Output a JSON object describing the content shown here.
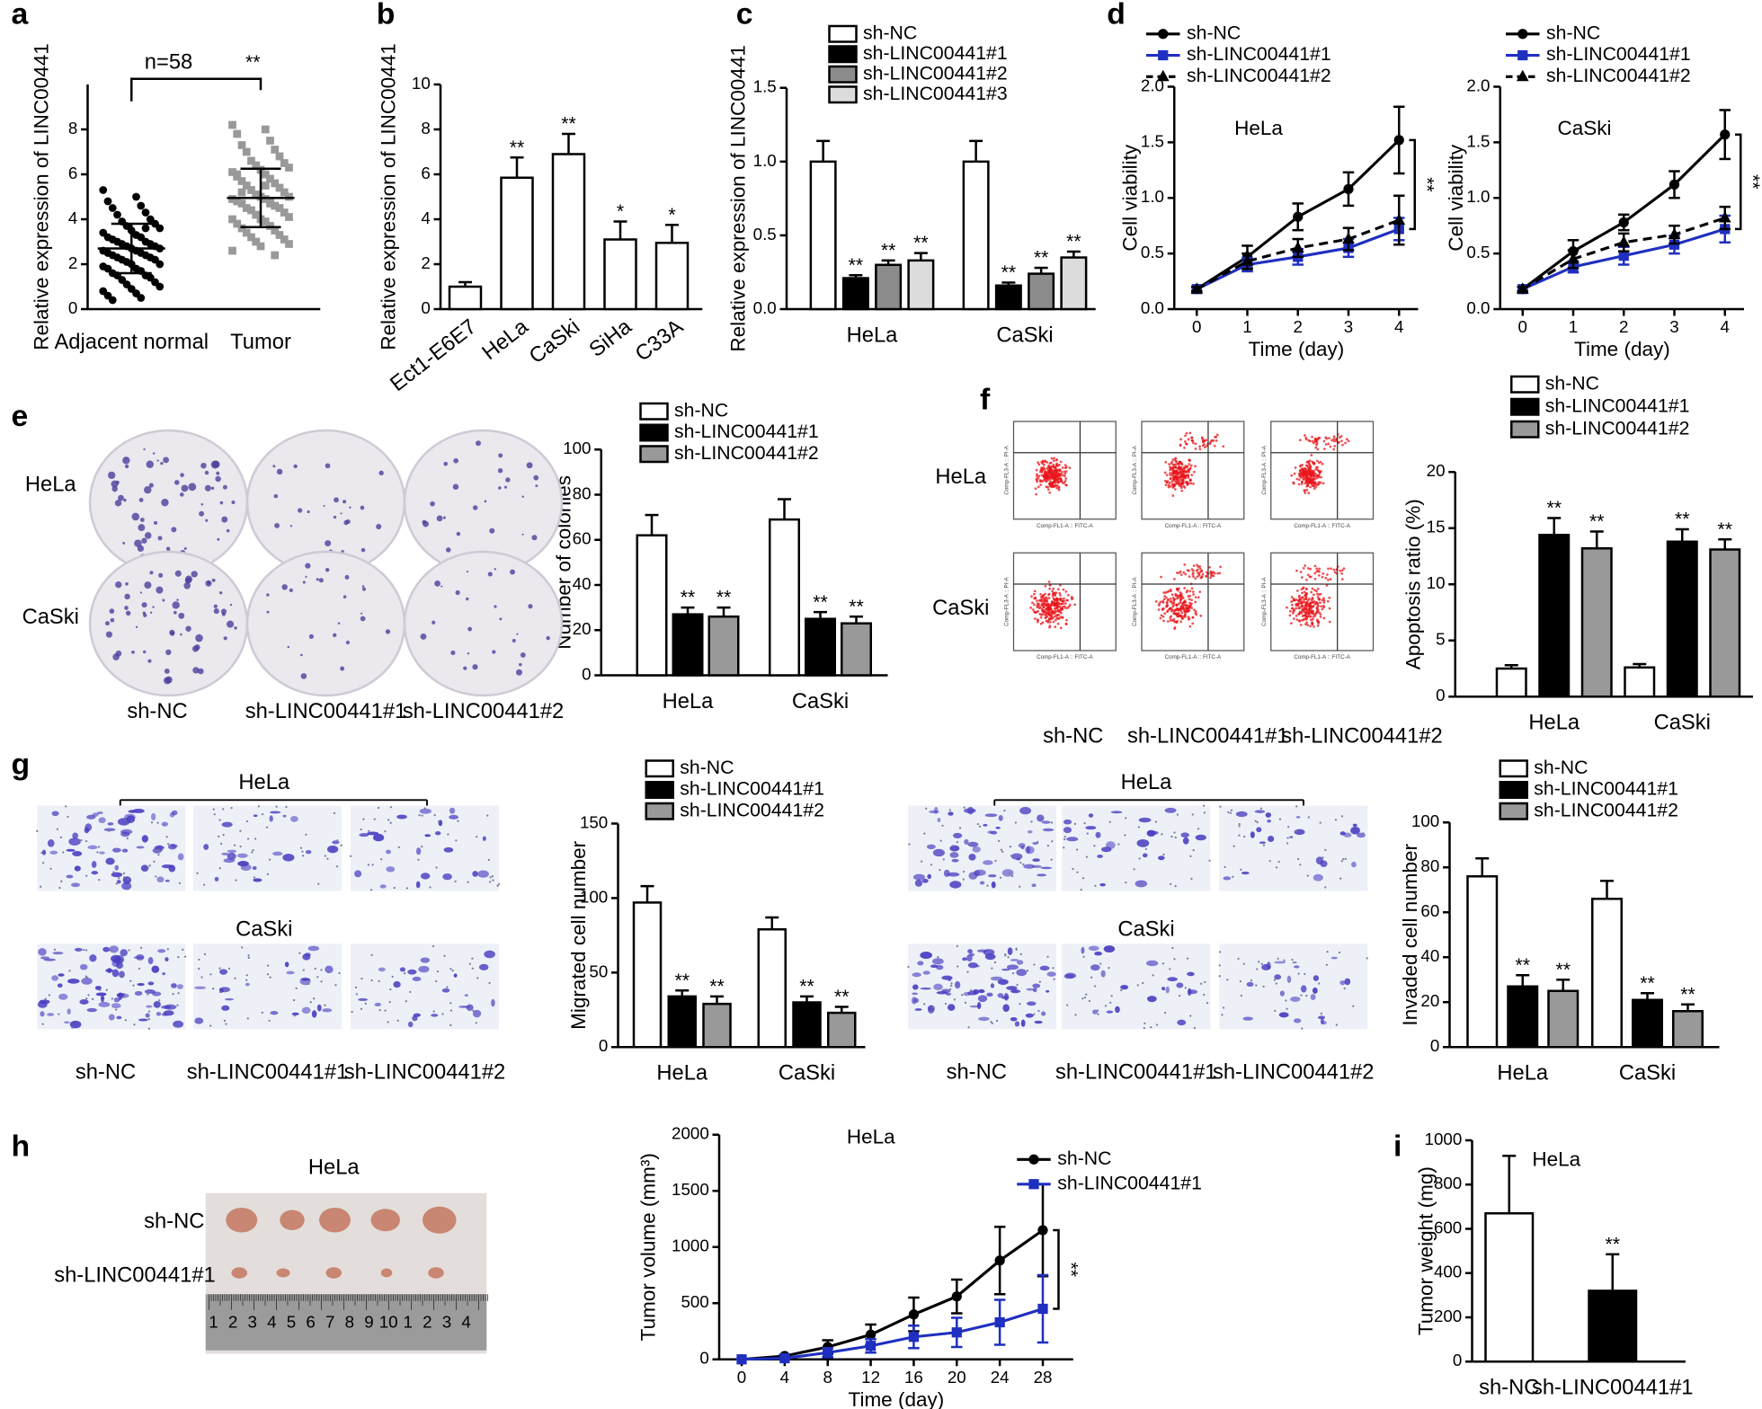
{
  "chart_data": [
    {
      "type": "strip",
      "ylabel": "Relative expression of LINC00441",
      "categories": [
        "Adjacent normal",
        "Tumor"
      ],
      "ylim": [
        0,
        10
      ],
      "yticks": [
        0,
        2,
        4,
        6,
        8
      ],
      "annotation": "n=58",
      "significance": "**",
      "groups": [
        {
          "color": "#000000",
          "marker": "circle",
          "mean": 2.7,
          "sd": 1.1,
          "values": [
            5.3,
            5.0,
            4.8,
            4.6,
            4.5,
            4.3,
            4.2,
            4.0,
            3.9,
            3.8,
            3.7,
            3.6,
            3.5,
            3.4,
            3.3,
            3.2,
            3.2,
            3.1,
            3.0,
            3.0,
            2.9,
            2.9,
            2.8,
            2.8,
            2.7,
            2.7,
            2.6,
            2.6,
            2.5,
            2.5,
            2.4,
            2.4,
            2.3,
            2.3,
            2.2,
            2.2,
            2.1,
            2.0,
            2.0,
            1.9,
            1.8,
            1.8,
            1.7,
            1.6,
            1.5,
            1.5,
            1.4,
            1.3,
            1.2,
            1.1,
            1.0,
            0.9,
            0.8,
            0.7,
            0.6,
            0.5,
            0.4,
            3.6
          ]
        },
        {
          "color": "#999999",
          "marker": "square",
          "mean": 4.95,
          "sd": 1.3,
          "values": [
            8.2,
            8.0,
            7.8,
            7.5,
            7.3,
            7.1,
            7.0,
            6.8,
            6.6,
            6.5,
            6.4,
            6.3,
            6.2,
            6.1,
            6.0,
            5.9,
            5.8,
            5.7,
            5.6,
            5.5,
            5.4,
            5.3,
            5.2,
            5.1,
            5.0,
            5.0,
            4.9,
            4.9,
            4.8,
            4.8,
            4.7,
            4.6,
            4.5,
            4.5,
            4.4,
            4.3,
            4.2,
            4.1,
            4.0,
            4.0,
            3.9,
            3.8,
            3.7,
            3.6,
            3.5,
            3.4,
            3.3,
            3.2,
            3.1,
            3.0,
            2.9,
            2.8,
            2.6,
            5.5,
            6.0,
            4.7,
            5.2,
            2.4
          ]
        }
      ]
    },
    {
      "type": "bar",
      "ylabel": "Relative expression of LINC00441",
      "categories": [
        "Ect1-E6E7",
        "HeLa",
        "CaSki",
        "SiHa",
        "C33A"
      ],
      "values": [
        1.0,
        5.85,
        6.9,
        3.1,
        2.95
      ],
      "errors": [
        0.2,
        0.9,
        0.9,
        0.8,
        0.8
      ],
      "significance": [
        null,
        "**",
        "**",
        "*",
        "*"
      ],
      "color": "#ffffff",
      "ylim": [
        0,
        10
      ],
      "yticks": [
        0,
        2,
        4,
        6,
        8,
        10
      ]
    },
    {
      "type": "bar",
      "ylabel": "Relative expression of LINC00441",
      "categories": [
        "HeLa",
        "CaSki"
      ],
      "ylim": [
        0,
        1.5
      ],
      "yticks": [
        {
          "value": 0,
          "label": "0.0"
        },
        0.5,
        {
          "value": 1,
          "label": "1.0"
        },
        1.5
      ],
      "series": [
        {
          "name": "sh-NC",
          "color": "#ffffff",
          "values": [
            1.0,
            1.0
          ],
          "errors": [
            0.14,
            0.14
          ],
          "significance": [
            null,
            null
          ]
        },
        {
          "name": "sh-LINC00441#1",
          "color": "#000000",
          "values": [
            0.21,
            0.16
          ],
          "errors": [
            0.02,
            0.02
          ],
          "significance": [
            "**",
            "**"
          ]
        },
        {
          "name": "sh-LINC00441#2",
          "color": "#8c8c8c",
          "values": [
            0.3,
            0.24
          ],
          "errors": [
            0.03,
            0.04
          ],
          "significance": [
            "**",
            "**"
          ]
        },
        {
          "name": "sh-LINC00441#3",
          "color": "#dcdcdc",
          "values": [
            0.33,
            0.35
          ],
          "errors": [
            0.05,
            0.04
          ],
          "significance": [
            "**",
            "**"
          ]
        }
      ]
    },
    {
      "type": "line",
      "title": "HeLa",
      "xlabel": "Time (day)",
      "ylabel": "Cell viability",
      "annotation": "**",
      "x": [
        0,
        1,
        2,
        3,
        4
      ],
      "xlim": [
        0,
        4
      ],
      "xticks": [
        0,
        1,
        2,
        3,
        4
      ],
      "ylim": [
        0,
        2
      ],
      "yticks": [
        {
          "value": 0,
          "label": "0.0"
        },
        0.5,
        {
          "value": 1,
          "label": "1.0"
        },
        1.5,
        {
          "value": 2,
          "label": "2.0"
        }
      ],
      "series": [
        {
          "name": "sh-NC",
          "color": "#000000",
          "marker": "circle",
          "dash": false,
          "values": [
            0.18,
            0.47,
            0.83,
            1.08,
            1.52
          ],
          "errors": [
            0.02,
            0.1,
            0.12,
            0.15,
            0.3
          ]
        },
        {
          "name": "sh-LINC00441#1",
          "color": "#1f2fbf",
          "marker": "square",
          "dash": false,
          "values": [
            0.18,
            0.4,
            0.47,
            0.55,
            0.72
          ],
          "errors": [
            0.02,
            0.06,
            0.07,
            0.08,
            0.1
          ]
        },
        {
          "name": "sh-LINC00441#2",
          "color": "#000000",
          "marker": "triangle",
          "dash": true,
          "values": [
            0.18,
            0.43,
            0.55,
            0.63,
            0.8
          ],
          "errors": [
            0.02,
            0.07,
            0.08,
            0.1,
            0.22
          ]
        }
      ]
    },
    {
      "type": "line",
      "title": "CaSki",
      "xlabel": "Time (day)",
      "ylabel": "Cell viability",
      "annotation": "**",
      "x": [
        0,
        1,
        2,
        3,
        4
      ],
      "xlim": [
        0,
        4
      ],
      "xticks": [
        0,
        1,
        2,
        3,
        4
      ],
      "ylim": [
        0,
        2
      ],
      "yticks": [
        {
          "value": 0,
          "label": "0.0"
        },
        0.5,
        {
          "value": 1,
          "label": "1.0"
        },
        1.5,
        {
          "value": 2,
          "label": "2.0"
        }
      ],
      "series": [
        {
          "name": "sh-NC",
          "color": "#000000",
          "marker": "circle",
          "dash": false,
          "values": [
            0.18,
            0.52,
            0.78,
            1.12,
            1.57
          ],
          "errors": [
            0.02,
            0.1,
            0.07,
            0.12,
            0.22
          ]
        },
        {
          "name": "sh-LINC00441#1",
          "color": "#1f2fbf",
          "marker": "square",
          "dash": false,
          "values": [
            0.18,
            0.38,
            0.48,
            0.58,
            0.72
          ],
          "errors": [
            0.02,
            0.05,
            0.08,
            0.08,
            0.12
          ]
        },
        {
          "name": "sh-LINC00441#2",
          "color": "#000000",
          "marker": "triangle",
          "dash": true,
          "values": [
            0.18,
            0.45,
            0.6,
            0.67,
            0.82
          ],
          "errors": [
            0.02,
            0.08,
            0.08,
            0.08,
            0.1
          ]
        }
      ]
    },
    {
      "type": "bar",
      "ylabel": "Number of colonies",
      "categories": [
        "HeLa",
        "CaSki"
      ],
      "ylim": [
        0,
        100
      ],
      "yticks": [
        0,
        20,
        40,
        60,
        80,
        100
      ],
      "series": [
        {
          "name": "sh-NC",
          "color": "#ffffff",
          "values": [
            62,
            69
          ],
          "errors": [
            9,
            9
          ],
          "significance": [
            null,
            null
          ]
        },
        {
          "name": "sh-LINC00441#1",
          "color": "#000000",
          "values": [
            27,
            25
          ],
          "errors": [
            3,
            3
          ],
          "significance": [
            "**",
            "**"
          ]
        },
        {
          "name": "sh-LINC00441#2",
          "color": "#999999",
          "values": [
            26,
            23
          ],
          "errors": [
            4,
            3
          ],
          "significance": [
            "**",
            "**"
          ]
        }
      ]
    },
    {
      "type": "bar",
      "ylabel": "Apoptosis ratio (%)",
      "categories": [
        "HeLa",
        "CaSki"
      ],
      "ylim": [
        0,
        20
      ],
      "yticks": [
        0,
        5,
        10,
        15,
        20
      ],
      "series": [
        {
          "name": "sh-NC",
          "color": "#ffffff",
          "values": [
            2.5,
            2.6
          ],
          "errors": [
            0.3,
            0.3
          ],
          "significance": [
            null,
            null
          ]
        },
        {
          "name": "sh-LINC00441#1",
          "color": "#000000",
          "values": [
            14.4,
            13.8
          ],
          "errors": [
            1.5,
            1.1
          ],
          "significance": [
            "**",
            "**"
          ]
        },
        {
          "name": "sh-LINC00441#2",
          "color": "#999999",
          "values": [
            13.2,
            13.1
          ],
          "errors": [
            1.5,
            0.9
          ],
          "significance": [
            "**",
            "**"
          ]
        }
      ]
    },
    {
      "type": "bar",
      "ylabel": "Migrated cell number",
      "categories": [
        "HeLa",
        "CaSki"
      ],
      "ylim": [
        0,
        150
      ],
      "yticks": [
        0,
        50,
        100,
        150
      ],
      "series": [
        {
          "name": "sh-NC",
          "color": "#ffffff",
          "values": [
            97,
            79
          ],
          "errors": [
            11,
            8
          ],
          "significance": [
            null,
            null
          ]
        },
        {
          "name": "sh-LINC00441#1",
          "color": "#000000",
          "values": [
            34,
            30
          ],
          "errors": [
            4,
            4
          ],
          "significance": [
            "**",
            "**"
          ]
        },
        {
          "name": "sh-LINC00441#2",
          "color": "#999999",
          "values": [
            29,
            23
          ],
          "errors": [
            5,
            4
          ],
          "significance": [
            "**",
            "**"
          ]
        }
      ]
    },
    {
      "type": "bar",
      "ylabel": "Invaded cell number",
      "categories": [
        "HeLa",
        "CaSki"
      ],
      "ylim": [
        0,
        100
      ],
      "yticks": [
        0,
        20,
        40,
        60,
        80,
        100
      ],
      "series": [
        {
          "name": "sh-NC",
          "color": "#ffffff",
          "values": [
            76,
            66
          ],
          "errors": [
            8,
            8
          ],
          "significance": [
            null,
            null
          ]
        },
        {
          "name": "sh-LINC00441#1",
          "color": "#000000",
          "values": [
            27,
            21
          ],
          "errors": [
            5,
            3
          ],
          "significance": [
            "**",
            "**"
          ]
        },
        {
          "name": "sh-LINC00441#2",
          "color": "#999999",
          "values": [
            25,
            16
          ],
          "errors": [
            5,
            3
          ],
          "significance": [
            "**",
            "**"
          ]
        }
      ]
    },
    {
      "type": "line",
      "title": "HeLa",
      "xlabel": "Time (day)",
      "ylabel": "Tumor volume (mm³)",
      "annotation": "**",
      "x": [
        0,
        4,
        8,
        12,
        16,
        20,
        24,
        28
      ],
      "xlim": [
        0,
        28
      ],
      "xticks": [
        0,
        4,
        8,
        12,
        16,
        20,
        24,
        28
      ],
      "ylim": [
        0,
        2000
      ],
      "yticks": [
        0,
        500,
        1000,
        1500,
        2000
      ],
      "series": [
        {
          "name": "sh-NC",
          "color": "#000000",
          "marker": "circle",
          "dash": false,
          "values": [
            0,
            30,
            110,
            220,
            400,
            560,
            880,
            1150
          ],
          "errors": [
            0,
            10,
            60,
            90,
            150,
            150,
            300,
            410
          ]
        },
        {
          "name": "sh-LINC00441#1",
          "color": "#1f2fbf",
          "marker": "square",
          "dash": false,
          "values": [
            0,
            10,
            60,
            120,
            200,
            240,
            330,
            450
          ],
          "errors": [
            0,
            5,
            40,
            60,
            100,
            130,
            200,
            300
          ]
        }
      ]
    },
    {
      "type": "bar",
      "title": "HeLa",
      "ylabel": "Tumor weight (mg)",
      "categories": [
        "sh-NC",
        "sh-LINC00441#1"
      ],
      "values": [
        670,
        320
      ],
      "errors": [
        260,
        165
      ],
      "significance": [
        null,
        "**"
      ],
      "colors": [
        "#ffffff",
        "#000000"
      ],
      "ylim": [
        0,
        1000
      ],
      "yticks": [
        0,
        200,
        400,
        600,
        800,
        1000
      ]
    }
  ],
  "figure": {
    "panel_labels": [
      "a",
      "b",
      "c",
      "d",
      "e",
      "f",
      "g",
      "h",
      "i"
    ],
    "colony_images": {
      "rows": [
        "HeLa",
        "CaSki"
      ],
      "columns": [
        "sh-NC",
        "sh-LINC00441#1",
        "sh-LINC00441#2"
      ]
    },
    "flow_images": {
      "rows": [
        "HeLa",
        "CaSki"
      ],
      "columns": [
        "sh-NC",
        "sh-LINC00441#1",
        "sh-LINC00441#2"
      ],
      "x_axis": "Comp-FL1-A :: FITC-A",
      "y_axis": "Comp-FL3-A :: PI-A"
    },
    "migration_images": {
      "groups": [
        "HeLa",
        "CaSki"
      ],
      "columns": [
        "sh-NC",
        "sh-LINC00441#1",
        "sh-LINC00441#2"
      ]
    },
    "invasion_images": {
      "groups": [
        "HeLa",
        "CaSki"
      ],
      "columns": [
        "sh-NC",
        "sh-LINC00441#1",
        "sh-LINC00441#2"
      ]
    },
    "tumor_photo": {
      "title": "HeLa",
      "rows": [
        "sh-NC",
        "sh-LINC00441#1"
      ],
      "ruler": [
        "1",
        "2",
        "3",
        "4",
        "5",
        "6",
        "7",
        "8",
        "9",
        "10",
        "1",
        "2",
        "3",
        "4"
      ]
    }
  }
}
